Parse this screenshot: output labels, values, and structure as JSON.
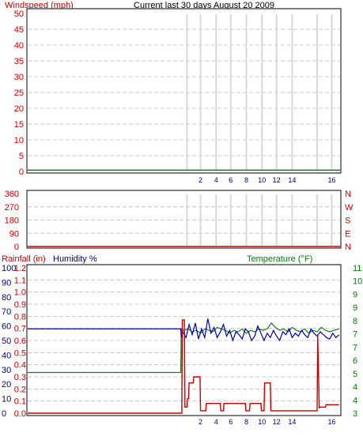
{
  "header": {
    "title": "Current last 30 days August 20 2009"
  },
  "colors": {
    "red_text": "#cc0000",
    "blue_text": "#000080",
    "green_text": "#008000",
    "rain_line": "#cc0000",
    "humidity_line": "#0000b0",
    "temperature_line": "#1a7a1a",
    "windspeed_line": "#1a7a1a",
    "day_marker": "#d8d8d8",
    "grid": "#c8c8c8"
  },
  "chart_data": [
    {
      "type": "line",
      "ylabel": "Windspeed (mph)",
      "ylim": [
        0,
        50
      ],
      "yticks": [
        "50",
        "45",
        "40",
        "35",
        "30",
        "25",
        "20",
        "15",
        "10",
        "5",
        "0"
      ],
      "xticks": [
        "2",
        "4",
        "6",
        "8",
        "10",
        "12",
        "14",
        "16"
      ],
      "grid": true,
      "series": [
        {
          "name": "Windspeed",
          "x": [
            0,
            30
          ],
          "values": [
            0.4,
            0.4
          ]
        }
      ]
    },
    {
      "type": "line",
      "ylim": [
        0,
        360
      ],
      "yticks": [
        "360",
        "270",
        "180",
        "90",
        "0"
      ],
      "direction_labels": [
        "N",
        "W",
        "S",
        "E",
        "N"
      ],
      "grid": true,
      "series": [
        {
          "name": "Wind direction",
          "x": [
            0,
            30
          ],
          "values": [
            0,
            0
          ]
        }
      ]
    },
    {
      "type": "line",
      "y1label_rain": "Rainfall (in)",
      "y1label_humidity": "Humidity %",
      "y2label": "Temperature (°F)",
      "humidity_ticks": [
        "100",
        "90",
        "80",
        "70",
        "60",
        "50",
        "40",
        "30",
        "20",
        "10",
        "0"
      ],
      "rain_ticks": [
        "1.2",
        "1.1",
        "1.0",
        "0.9",
        "0.8",
        "0.7",
        "0.6",
        "0.5",
        "0.4",
        "0.3",
        "0.2",
        "0.1",
        "0.0"
      ],
      "temp_ticks": [
        "11",
        "10",
        "9",
        "9",
        "8",
        "7",
        "7",
        "6",
        "5",
        "4",
        "4",
        "3"
      ],
      "xticks": [
        "2",
        "4",
        "6",
        "8",
        "10",
        "12",
        "14",
        "16"
      ],
      "grid": true,
      "series": [
        {
          "name": "Humidity",
          "x": [
            0,
            14.7,
            14.75,
            14.9,
            15.2,
            15.5,
            15.8,
            16.1,
            16.4,
            16.7,
            17.0,
            17.3,
            17.6,
            17.9,
            18.2,
            18.5,
            18.8,
            19.1,
            19.4,
            19.7,
            20.0,
            20.3,
            20.6,
            20.9,
            21.2,
            21.5,
            21.8,
            22.1,
            22.4,
            22.7,
            23.0,
            23.3,
            23.6,
            23.9,
            24.2,
            24.5,
            24.8,
            25.1,
            25.4,
            25.7,
            26.0,
            26.3,
            26.6,
            26.9,
            27.2,
            27.5,
            27.8,
            28.1,
            28.4,
            28.7,
            29.0,
            29.3,
            29.6,
            29.9
          ],
          "values": [
            58,
            58,
            52,
            56,
            52,
            61,
            54,
            62,
            51,
            58,
            52,
            65,
            55,
            59,
            52,
            56,
            61,
            53,
            57,
            50,
            56,
            54,
            51,
            58,
            56,
            50,
            53,
            60,
            55,
            50,
            55,
            52,
            57,
            53,
            50,
            56,
            54,
            58,
            52,
            55,
            53,
            57,
            54,
            52,
            58,
            55,
            53,
            56,
            54,
            52,
            51,
            55,
            52,
            54
          ]
        },
        {
          "name": "Temperature",
          "x": [
            0,
            14.7,
            14.75,
            15.0,
            15.4,
            15.8,
            16.2,
            16.6,
            17.0,
            17.4,
            17.8,
            18.2,
            18.6,
            19.0,
            19.4,
            19.8,
            20.2,
            20.6,
            21.0,
            21.4,
            21.8,
            22.2,
            22.6,
            23.0,
            23.4,
            23.8,
            24.2,
            24.6,
            25.0,
            25.4,
            25.8,
            26.2,
            26.6,
            27.0,
            27.4,
            27.8,
            28.2,
            28.6,
            29.0,
            29.4,
            29.9
          ],
          "values": [
            28,
            28,
            58,
            57,
            58,
            56,
            57,
            55,
            58,
            57,
            56,
            59,
            58,
            57,
            55,
            57,
            56,
            58,
            55,
            57,
            56,
            58,
            57,
            58,
            62,
            59,
            57,
            58,
            56,
            59,
            57,
            56,
            58,
            55,
            57,
            56,
            59,
            57,
            56,
            57,
            58
          ]
        },
        {
          "name": "Rainfall",
          "x": [
            0,
            14.8,
            14.85,
            15.05,
            15.1,
            15.3,
            15.35,
            15.45,
            15.5,
            15.9,
            15.95,
            16.55,
            16.6,
            17.1,
            17.15,
            18.5,
            18.55,
            18.8,
            18.85,
            20.9,
            20.95,
            21.3,
            21.35,
            22.4,
            22.45,
            22.7,
            22.75,
            23.3,
            23.35,
            27.8,
            27.85,
            28.0,
            28.05,
            28.6,
            28.65,
            29.9
          ],
          "values": [
            0.0,
            0.0,
            0.77,
            0.77,
            0.05,
            0.05,
            0.12,
            0.12,
            0.25,
            0.25,
            0.3,
            0.3,
            0.02,
            0.02,
            0.08,
            0.08,
            0.02,
            0.02,
            0.08,
            0.08,
            0.02,
            0.02,
            0.08,
            0.08,
            0.02,
            0.02,
            0.25,
            0.25,
            0.02,
            0.02,
            0.65,
            0.04,
            0.05,
            0.05,
            0.07,
            0.07
          ]
        }
      ]
    }
  ]
}
